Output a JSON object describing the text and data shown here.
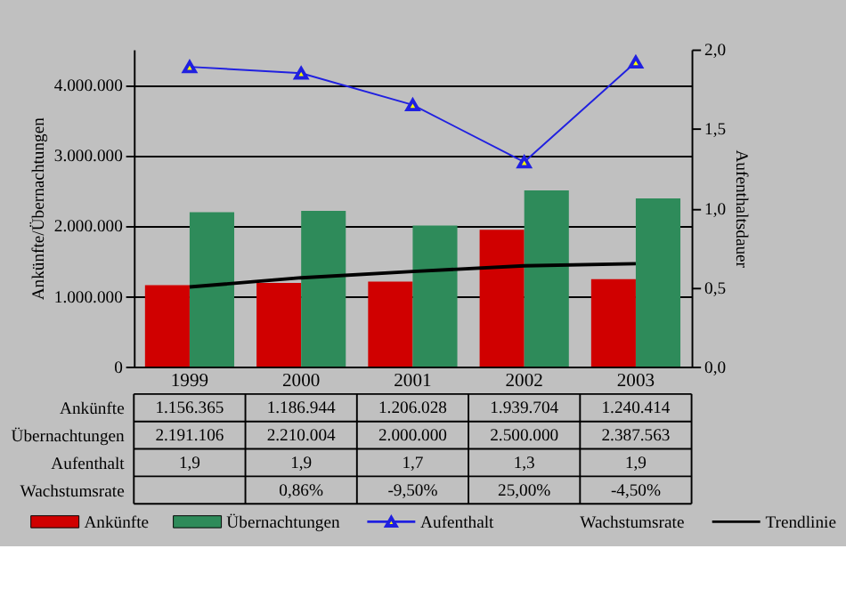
{
  "chart_data": {
    "type": "bar",
    "categories": [
      "1999",
      "2000",
      "2001",
      "2002",
      "2003"
    ],
    "ylabel": "Ankünfte/Übernachtungen",
    "y2label": "Aufenthaltsdauer",
    "series": [
      {
        "name": "Ankünfte",
        "type": "bar",
        "color": "#d00000",
        "values": [
          1156365,
          1186944,
          1206028,
          1939704,
          1240414
        ],
        "value_labels": [
          "1.156.365",
          "1.186.944",
          "1.206.028",
          "1.939.704",
          "1.240.414"
        ]
      },
      {
        "name": "Übernachtungen",
        "type": "bar",
        "color": "#2e8b5a",
        "values": [
          2191106,
          2210004,
          2000000,
          2500000,
          2387563
        ],
        "value_labels": [
          "2.191.106",
          "2.210.004",
          "2.000.000",
          "2.500.000",
          "2.387.563"
        ]
      },
      {
        "name": "Aufenthalt",
        "type": "line",
        "axis": "y2",
        "color": "#2020e0",
        "marker": "triangle",
        "values": [
          1.89,
          1.85,
          1.65,
          1.29,
          1.92
        ],
        "value_labels": [
          "1,9",
          "1,9",
          "1,7",
          "1,3",
          "1,9"
        ]
      },
      {
        "name": "Trendlinie",
        "type": "line",
        "color": "#000000",
        "values": [
          1130000,
          1260000,
          1350000,
          1430000,
          1460000
        ]
      }
    ],
    "annotations": [
      "Wachstumsrate",
      "0,86%",
      "-9,50%",
      "25,00%",
      "-4,50%"
    ],
    "ylim": [
      0,
      4500000
    ],
    "yticks": [
      0,
      {
        "value": 1000000,
        "label": "1.000.000"
      },
      {
        "value": 2000000,
        "label": "2.000.000"
      },
      {
        "value": 3000000,
        "label": "3.000.000"
      },
      {
        "value": 4000000,
        "label": "4.000.000"
      }
    ],
    "y2lim": [
      0,
      2
    ],
    "y2ticks": [
      {
        "value": 0,
        "label": "0,0"
      },
      {
        "value": 0.5,
        "label": "0,5"
      },
      {
        "value": 1,
        "label": "1,0"
      },
      {
        "value": 1.5,
        "label": "1,5"
      },
      {
        "value": 2,
        "label": "2,0"
      }
    ],
    "grid": "y",
    "legend": "bottom"
  }
}
